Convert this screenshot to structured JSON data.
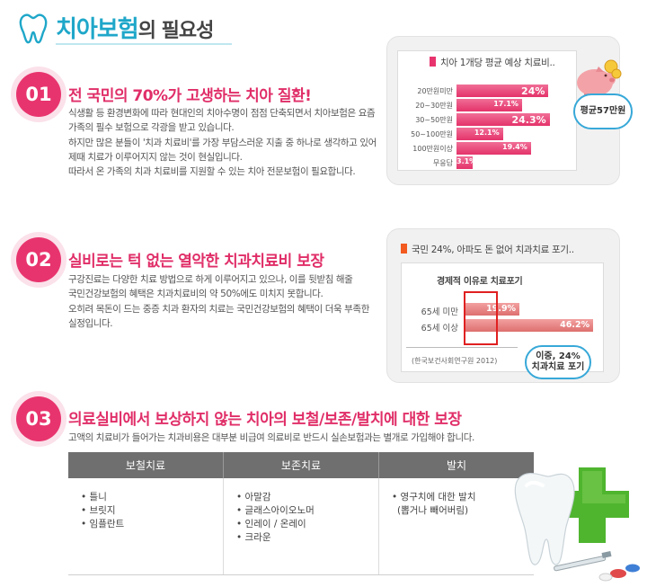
{
  "header": {
    "title": "치아보험",
    "title_suffix": "의 필요성"
  },
  "sections": [
    {
      "num": "01",
      "title": "전 국민의 70%가 고생하는 치아 질환!",
      "lines": [
        "식생활 등 환경변화에 따라 현대인의 치아수명이 점점 단축되면서 치아보험은 요즘",
        "가족의 필수 보험으로 각광을 받고 있습니다.",
        "하지만 많은 분들이 '치과 치료비'를 가장 부담스러운 지출 중 하나로 생각하고 있어",
        "제때  치료가 이루어지지 않는 것이 현실입니다.",
        "따라서 온 가족의 치과 치료비를 지원할 수 있는 치아 전문보험이 필요합니다."
      ]
    },
    {
      "num": "02",
      "title": "실비로는 턱 없는 열악한 치과치료비 보장",
      "lines": [
        "구강진료는 다양한 치료 방법으로 하게 이루어지고 있으나, 이를 뒷받침 해줄",
        "국민건강보험의 혜택은 치과치료비의 약 50%에도 미치지 못합니다.",
        "오히려 목돈이 드는 중증 치과 환자의 치료는 국민건강보험의 혜택이 더욱 부족한",
        "실정입니다."
      ]
    },
    {
      "num": "03",
      "title": "의료실비에서 보상하지 않는 치아의 보철/보존/발치에 대한 보장",
      "lines": [
        "고액의 치료비가 들어가는 치과비용은 대부분 비급여 의료비로 반드시 실손보험과는 별개로 가입해야 합니다."
      ]
    }
  ],
  "chart1": {
    "title": "치아 1개당 평균 예상 치료비..",
    "callout": "평균57만원"
  },
  "chart2": {
    "title": "국민 24%, 아파도 돈 없어 치과치료 포기..",
    "subtitle": "경제적 이유로 치료포기",
    "callout_line1": "이중, 24%",
    "callout_line2": "치과치료 포기",
    "source": "(한국보건사회연구원 2012)"
  },
  "chart_data": [
    {
      "type": "bar",
      "orientation": "horizontal",
      "title": "치아 1개당 평균 예상 치료비..",
      "categories": [
        "20만원미만",
        "20~30만원",
        "30~50만원",
        "50~100만원",
        "100만원이상",
        "무응답"
      ],
      "values": [
        24,
        17.1,
        24.3,
        12.1,
        19.4,
        3.1
      ],
      "value_labels": [
        "24%",
        "17.1%",
        "24.3%",
        "12.1%",
        "19.4%",
        "3.1%"
      ],
      "xlim": [
        0,
        30
      ],
      "color": "#e8346e"
    },
    {
      "type": "bar",
      "orientation": "horizontal",
      "title": "경제적 이유로 치료포기",
      "categories": [
        "65세 미만",
        "65세 이상"
      ],
      "values": [
        19.9,
        46.2
      ],
      "value_labels": [
        "19.9%",
        "46.2%"
      ],
      "xlim": [
        0,
        50
      ],
      "color": "#e07878"
    }
  ],
  "table": {
    "headers": [
      "보철치료",
      "보존치료",
      "발치"
    ],
    "columns": [
      [
        "• 틀니",
        "• 브릿지",
        "• 임플란트"
      ],
      [
        "• 아말감",
        "• 글래스아이오노머",
        "• 인레이 / 온레이",
        "• 크라운"
      ],
      [
        "• 영구치에 대한 발치",
        "(뽑거나 빼어버림)"
      ]
    ]
  },
  "colors": {
    "accent": "#e8346e",
    "title_blue": "#1fa7c9",
    "callout_blue": "#37a8d8",
    "green_cross": "#4fb52f"
  }
}
